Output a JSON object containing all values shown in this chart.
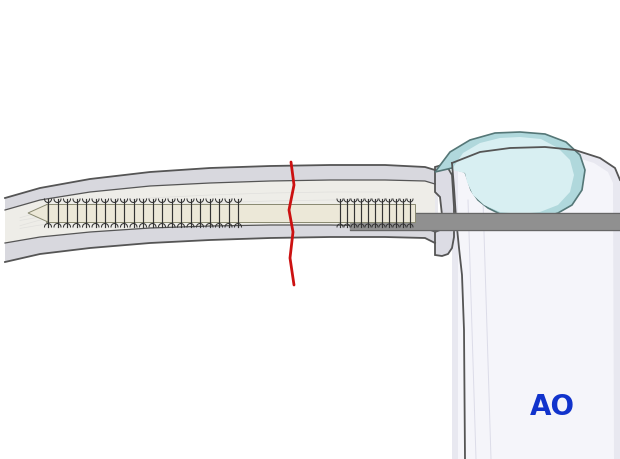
{
  "bg": "#ffffff",
  "bone_fill": "#e8e8ed",
  "bone_inner": "#f2f2f5",
  "bone_outline": "#555555",
  "cortex_fill": "#d8d8de",
  "canal_fill": "#eeede8",
  "screw_body": "#ece8d8",
  "screw_outline": "#888870",
  "thread_color": "#333333",
  "frac_color": "#cc1111",
  "cart_outer": "#b0d8dc",
  "cart_inner": "#d8eff2",
  "cart_outline": "#557777",
  "gray_rod": "#909090",
  "gray_rod_outline": "#666666",
  "prox_bone_fill": "#e8e8f0",
  "prox_bone_inner": "#f5f5fa",
  "prox_bone_outline": "#555555",
  "ao_color": "#1133cc",
  "ao_text": "AO"
}
